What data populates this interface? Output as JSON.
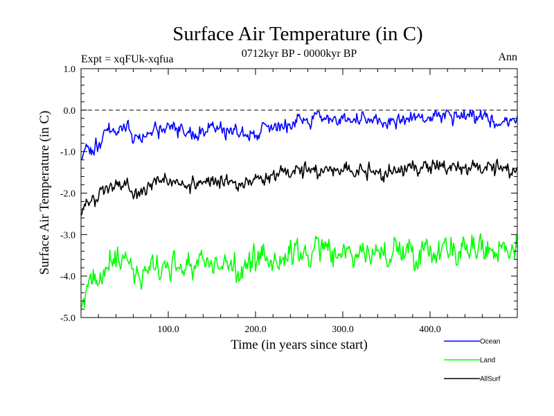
{
  "chart_data": {
    "type": "line",
    "title": "Surface Air Temperature (in C)",
    "subtitle": "0712kyr BP - 0000kyr BP",
    "expt_label": "Expt = xqFUk-xqfua",
    "season_label": "Ann",
    "xlabel": "Time (in years since start)",
    "ylabel": "Surface Air Temperature (in C)",
    "xlim": [
      0,
      500
    ],
    "ylim": [
      -5.0,
      1.0
    ],
    "x_ticks": [
      100,
      200,
      300,
      400
    ],
    "x_tick_labels": [
      "100.0",
      "200.0",
      "300.0",
      "400.0"
    ],
    "y_ticks": [
      1.0,
      0.0,
      -1.0,
      -2.0,
      -3.0,
      -4.0,
      -5.0
    ],
    "y_tick_labels": [
      "1.0",
      "0.0",
      "-1.0",
      "-2.0",
      "-3.0",
      "-4.0",
      "-5.0"
    ],
    "reference_line": 0.0,
    "legend_position": "bottom-right, outside plot",
    "series": [
      {
        "name": "Ocean",
        "color": "#0000ff",
        "anchors": [
          [
            0,
            -1.25
          ],
          [
            5,
            -0.95
          ],
          [
            15,
            -0.85
          ],
          [
            30,
            -0.55
          ],
          [
            45,
            -0.45
          ],
          [
            55,
            -0.4
          ],
          [
            60,
            -0.7
          ],
          [
            80,
            -0.55
          ],
          [
            100,
            -0.45
          ],
          [
            120,
            -0.6
          ],
          [
            140,
            -0.45
          ],
          [
            160,
            -0.45
          ],
          [
            180,
            -0.55
          ],
          [
            200,
            -0.55
          ],
          [
            220,
            -0.35
          ],
          [
            240,
            -0.3
          ],
          [
            260,
            -0.2
          ],
          [
            280,
            -0.15
          ],
          [
            300,
            -0.2
          ],
          [
            320,
            -0.3
          ],
          [
            340,
            -0.3
          ],
          [
            360,
            -0.25
          ],
          [
            380,
            -0.2
          ],
          [
            400,
            -0.2
          ],
          [
            420,
            -0.15
          ],
          [
            440,
            -0.2
          ],
          [
            460,
            -0.2
          ],
          [
            480,
            -0.25
          ],
          [
            500,
            -0.25
          ]
        ],
        "noise": 0.12,
        "seed": 11
      },
      {
        "name": "Land",
        "color": "#00ff00",
        "anchors": [
          [
            0,
            -4.8
          ],
          [
            5,
            -4.3
          ],
          [
            15,
            -4.3
          ],
          [
            30,
            -3.8
          ],
          [
            45,
            -3.6
          ],
          [
            55,
            -3.55
          ],
          [
            60,
            -3.95
          ],
          [
            80,
            -3.8
          ],
          [
            100,
            -3.7
          ],
          [
            120,
            -3.75
          ],
          [
            140,
            -3.6
          ],
          [
            160,
            -3.65
          ],
          [
            180,
            -3.85
          ],
          [
            200,
            -3.75
          ],
          [
            220,
            -3.55
          ],
          [
            240,
            -3.5
          ],
          [
            260,
            -3.45
          ],
          [
            280,
            -3.35
          ],
          [
            300,
            -3.4
          ],
          [
            320,
            -3.45
          ],
          [
            340,
            -3.5
          ],
          [
            360,
            -3.4
          ],
          [
            380,
            -3.35
          ],
          [
            400,
            -3.4
          ],
          [
            420,
            -3.25
          ],
          [
            440,
            -3.35
          ],
          [
            460,
            -3.35
          ],
          [
            480,
            -3.3
          ],
          [
            500,
            -3.3
          ]
        ],
        "noise": 0.22,
        "seed": 23
      },
      {
        "name": "AllSurf",
        "color": "#000000",
        "anchors": [
          [
            0,
            -2.6
          ],
          [
            5,
            -2.2
          ],
          [
            15,
            -2.2
          ],
          [
            30,
            -1.9
          ],
          [
            45,
            -1.75
          ],
          [
            55,
            -1.7
          ],
          [
            60,
            -2.05
          ],
          [
            80,
            -1.85
          ],
          [
            100,
            -1.75
          ],
          [
            120,
            -1.85
          ],
          [
            140,
            -1.7
          ],
          [
            160,
            -1.75
          ],
          [
            180,
            -1.85
          ],
          [
            200,
            -1.8
          ],
          [
            220,
            -1.6
          ],
          [
            240,
            -1.55
          ],
          [
            260,
            -1.5
          ],
          [
            280,
            -1.45
          ],
          [
            300,
            -1.5
          ],
          [
            320,
            -1.55
          ],
          [
            340,
            -1.55
          ],
          [
            360,
            -1.5
          ],
          [
            380,
            -1.45
          ],
          [
            400,
            -1.45
          ],
          [
            420,
            -1.35
          ],
          [
            440,
            -1.45
          ],
          [
            460,
            -1.45
          ],
          [
            480,
            -1.45
          ],
          [
            500,
            -1.45
          ]
        ],
        "noise": 0.13,
        "seed": 37
      }
    ]
  }
}
